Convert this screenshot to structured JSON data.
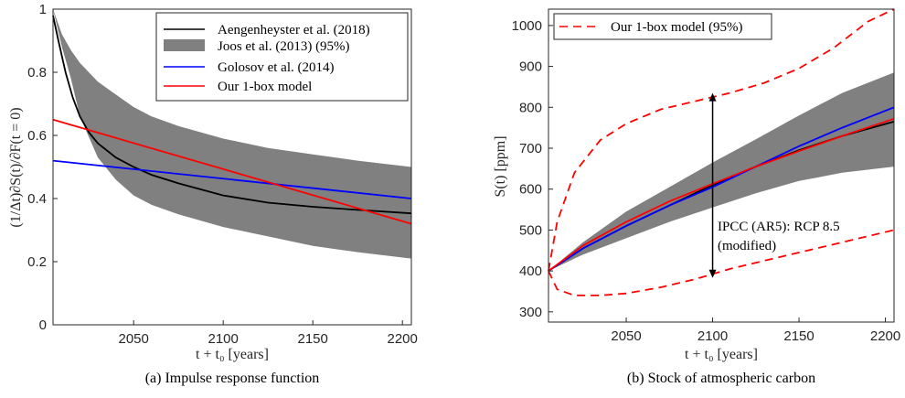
{
  "colors": {
    "black": "#000000",
    "band": "#808080",
    "blue": "#0000ff",
    "red": "#ff0000"
  },
  "chart_data": [
    {
      "type": "line",
      "caption": "(a) Impulse response function",
      "xlabel": "t + t₀ [years]",
      "ylabel": "(1/Δt)∂S(t)/∂F(t = 0)",
      "xlim": [
        2005,
        2205
      ],
      "ylim": [
        0,
        1
      ],
      "xticks": [
        2050,
        2100,
        2150,
        2200
      ],
      "yticks": [
        0,
        0.2,
        0.4,
        0.6,
        0.8,
        1
      ],
      "ytick_labels": [
        "0",
        "0.2",
        "0.4",
        "0.6",
        "0.8",
        "1"
      ],
      "grid": false,
      "legend_position": "top-right",
      "band": {
        "name": "Joos et al. (2013) (95%)",
        "x": [
          2005,
          2010,
          2015,
          2020,
          2030,
          2040,
          2050,
          2060,
          2075,
          2100,
          2125,
          2150,
          2175,
          2205
        ],
        "upper": [
          1.0,
          0.92,
          0.87,
          0.83,
          0.77,
          0.73,
          0.69,
          0.66,
          0.63,
          0.59,
          0.56,
          0.54,
          0.52,
          0.5
        ],
        "lower": [
          1.0,
          0.88,
          0.78,
          0.66,
          0.53,
          0.46,
          0.41,
          0.38,
          0.35,
          0.31,
          0.28,
          0.25,
          0.23,
          0.21
        ]
      },
      "series": [
        {
          "name": "Aengenheyster et al. (2018)",
          "color": "#000000",
          "x": [
            2005,
            2008,
            2012,
            2016,
            2020,
            2025,
            2030,
            2040,
            2050,
            2060,
            2075,
            2100,
            2125,
            2150,
            2175,
            2205
          ],
          "values": [
            0.98,
            0.9,
            0.8,
            0.72,
            0.66,
            0.61,
            0.575,
            0.53,
            0.5,
            0.475,
            0.448,
            0.41,
            0.387,
            0.374,
            0.364,
            0.353
          ]
        },
        {
          "name": "Golosov et al. (2014)",
          "color": "#0000ff",
          "x": [
            2005,
            2205
          ],
          "values": [
            0.52,
            0.4
          ]
        },
        {
          "name": "Our 1-box model",
          "color": "#ff0000",
          "x": [
            2005,
            2205
          ],
          "values": [
            0.65,
            0.32
          ]
        }
      ]
    },
    {
      "type": "line",
      "caption": "(b) Stock of atmospheric carbon",
      "xlabel": "t + t₀ [years]",
      "ylabel": "S(t) [ppm]",
      "xlim": [
        2005,
        2205
      ],
      "ylim": [
        275,
        1040
      ],
      "xticks": [
        2050,
        2100,
        2150,
        2200
      ],
      "yticks": [
        300,
        400,
        500,
        600,
        700,
        800,
        900,
        1000
      ],
      "grid": false,
      "legend_position": "top-left",
      "band": {
        "name": "",
        "x": [
          2005,
          2025,
          2050,
          2075,
          2100,
          2125,
          2150,
          2175,
          2205
        ],
        "upper": [
          400,
          470,
          545,
          605,
          665,
          722,
          780,
          835,
          885
        ],
        "lower": [
          400,
          440,
          480,
          520,
          555,
          590,
          620,
          640,
          655
        ]
      },
      "series": [
        {
          "name": "Our 1-box model (95%)",
          "color": "#ff0000",
          "dashed": true,
          "x": [
            2005,
            2010,
            2020,
            2035,
            2050,
            2070,
            2090,
            2110,
            2130,
            2150,
            2170,
            2190,
            2205
          ],
          "values": [
            400,
            520,
            640,
            720,
            760,
            795,
            815,
            835,
            860,
            895,
            945,
            1010,
            1040
          ]
        },
        {
          "name": "",
          "color": "#ff0000",
          "dashed": true,
          "x": [
            2005,
            2010,
            2020,
            2035,
            2050,
            2070,
            2090,
            2110,
            2130,
            2150,
            2170,
            2190,
            2205
          ],
          "values": [
            400,
            355,
            340,
            340,
            345,
            360,
            380,
            405,
            425,
            445,
            465,
            485,
            500
          ]
        },
        {
          "name": "",
          "color": "#000000",
          "x": [
            2005,
            2025,
            2050,
            2075,
            2100,
            2125,
            2150,
            2175,
            2205
          ],
          "values": [
            400,
            455,
            510,
            560,
            610,
            655,
            695,
            730,
            765
          ]
        },
        {
          "name": "",
          "color": "#0000ff",
          "x": [
            2005,
            2025,
            2050,
            2075,
            2100,
            2125,
            2150,
            2175,
            2205
          ],
          "values": [
            400,
            455,
            510,
            560,
            605,
            655,
            705,
            750,
            800
          ]
        },
        {
          "name": "",
          "color": "#ff0000",
          "x": [
            2005,
            2025,
            2050,
            2075,
            2100,
            2125,
            2150,
            2175,
            2205
          ],
          "values": [
            400,
            462,
            520,
            570,
            613,
            655,
            693,
            730,
            772
          ]
        }
      ],
      "annotation": {
        "arrow_x": 2100,
        "arrow_from": 383,
        "arrow_to": 835,
        "text_line1": "IPCC (AR5): RCP 8.5",
        "text_line2": "(modified)"
      }
    }
  ]
}
